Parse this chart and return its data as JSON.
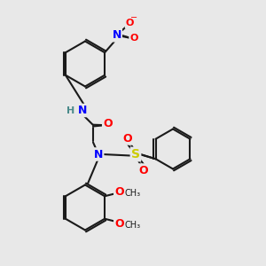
{
  "bg_color": "#e8e8e8",
  "bond_color": "#1a1a1a",
  "bond_width": 1.5,
  "atom_colors": {
    "N": "#0000ff",
    "O": "#ff0000",
    "S": "#cccc00",
    "H": "#4a8a8a",
    "C": "#1a1a1a"
  },
  "font_size": 9,
  "font_size_small": 8
}
